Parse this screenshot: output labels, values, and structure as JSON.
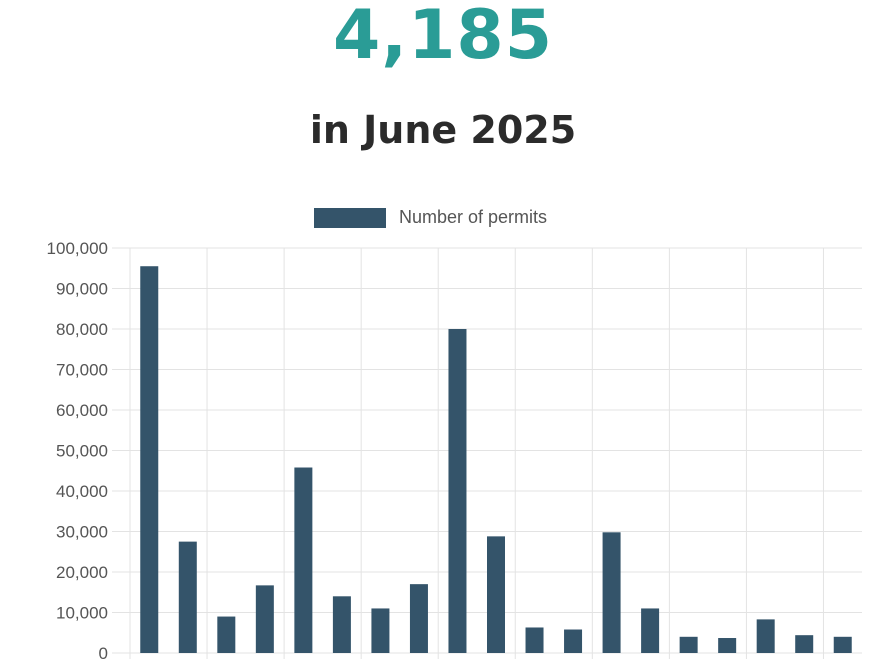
{
  "header": {
    "value": "4,185",
    "caption": "in June 2025"
  },
  "colors": {
    "accent": "#2a9c96",
    "bar": "#34546a",
    "grid": "#e3e3e3"
  },
  "chart_data": {
    "type": "bar",
    "title": "",
    "xlabel": "",
    "ylabel": "",
    "ylim": [
      0,
      100000
    ],
    "y_ticks": [
      0,
      10000,
      20000,
      30000,
      40000,
      50000,
      60000,
      70000,
      80000,
      90000,
      100000
    ],
    "y_tick_labels": [
      "0",
      "10,000",
      "20,000",
      "30,000",
      "40,000",
      "50,000",
      "60,000",
      "70,000",
      "80,000",
      "90,000",
      "100,000"
    ],
    "grid": true,
    "legend": {
      "position": "top-center"
    },
    "series": [
      {
        "name": "Number of permits",
        "values": [
          95500,
          27500,
          9000,
          16700,
          45800,
          14000,
          11000,
          17000,
          80000,
          28800,
          6300,
          5800,
          29800,
          11000,
          4000,
          3700,
          8300,
          4400,
          4000
        ]
      }
    ]
  }
}
